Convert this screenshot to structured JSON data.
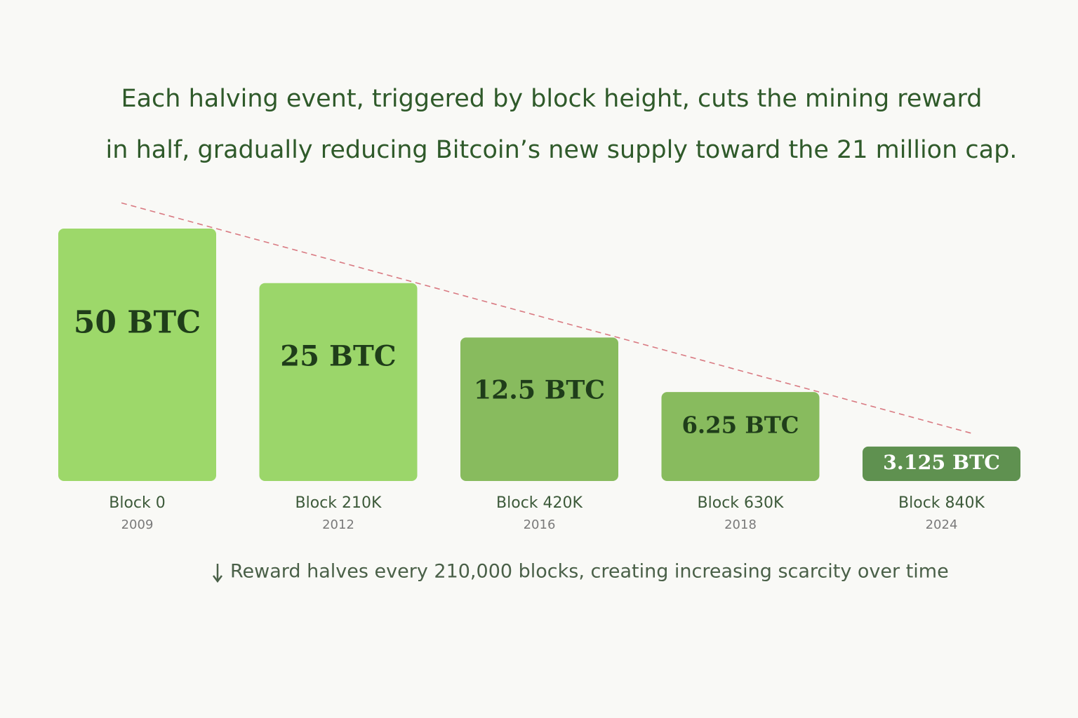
{
  "chart_data": {
    "type": "bar",
    "title": [
      "Each halving event, triggered by block height, cuts the mining reward",
      "in half, gradually reducing Bitcoin’s new supply toward the 21 million cap."
    ],
    "categories": [
      "Block 0",
      "Block 210K",
      "Block 420K",
      "Block 630K",
      "Block 840K"
    ],
    "years": [
      "2009",
      "2012",
      "2016",
      "2018",
      "2024"
    ],
    "values": [
      50,
      25,
      12.5,
      6.25,
      3.125
    ],
    "value_labels": [
      "50 BTC",
      "25 BTC",
      "12.5 BTC",
      "6.25 BTC",
      "3.125 BTC"
    ],
    "colors": [
      "#9dd86a",
      "#9bd66a",
      "#88bb5e",
      "#88bb5e",
      "#5f9150"
    ],
    "log_scale": true,
    "trend_color": "#d97a82",
    "note": "Reward halves every 210,000 blocks, creating increasing scarcity over time"
  }
}
